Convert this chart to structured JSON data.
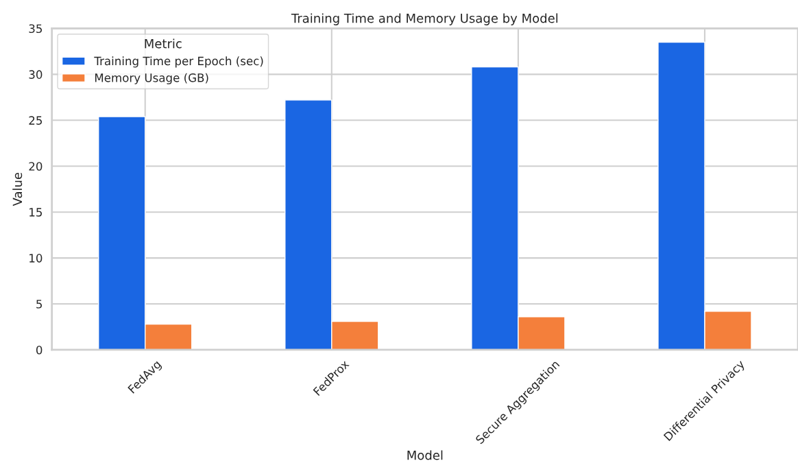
{
  "chart_data": {
    "type": "bar",
    "title": "Training Time and Memory Usage by Model",
    "xlabel": "Model",
    "ylabel": "Value",
    "legend_title": "Metric",
    "categories": [
      "FedAvg",
      "FedProx",
      "Secure Aggregation",
      "Differential Privacy"
    ],
    "series": [
      {
        "name": "Training Time per Epoch (sec)",
        "color": "#1a66e3",
        "values": [
          25.4,
          27.2,
          30.8,
          33.5
        ]
      },
      {
        "name": "Memory Usage (GB)",
        "color": "#f47f3b",
        "values": [
          2.8,
          3.1,
          3.6,
          4.2
        ]
      }
    ],
    "ylim": [
      0,
      35
    ],
    "yticks": [
      0,
      5,
      10,
      15,
      20,
      25,
      30,
      35
    ],
    "grid": true,
    "legend": "top left"
  }
}
